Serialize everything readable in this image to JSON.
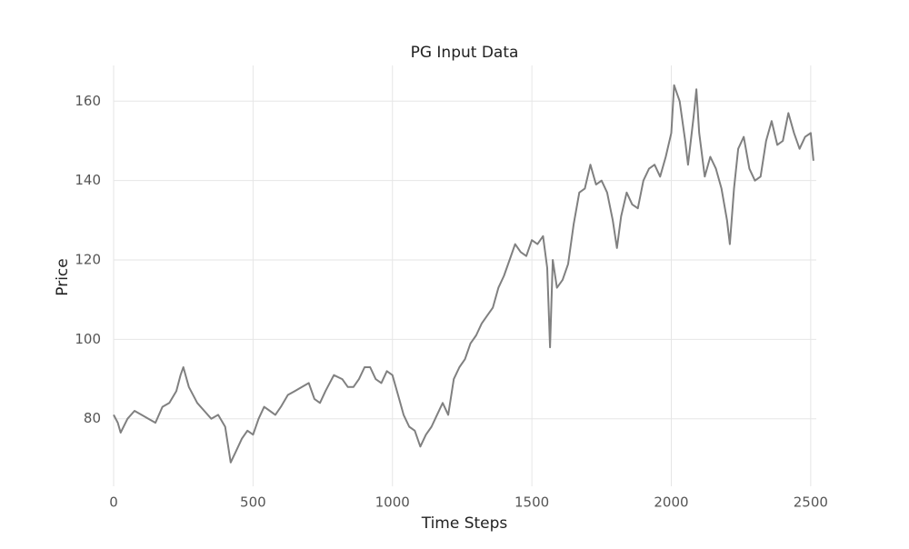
{
  "chart_data": {
    "type": "line",
    "title": "PG Input Data",
    "x_label": "Time Steps",
    "y_label": "Price",
    "x": [
      0,
      15,
      25,
      50,
      75,
      100,
      125,
      150,
      175,
      200,
      225,
      240,
      250,
      270,
      300,
      325,
      350,
      375,
      400,
      420,
      440,
      460,
      480,
      500,
      520,
      540,
      560,
      580,
      600,
      625,
      650,
      675,
      700,
      720,
      740,
      760,
      790,
      820,
      840,
      860,
      880,
      900,
      920,
      940,
      960,
      980,
      1000,
      1020,
      1040,
      1060,
      1080,
      1100,
      1120,
      1140,
      1160,
      1180,
      1200,
      1220,
      1240,
      1260,
      1280,
      1300,
      1320,
      1340,
      1360,
      1380,
      1400,
      1420,
      1440,
      1460,
      1480,
      1500,
      1520,
      1540,
      1555,
      1565,
      1575,
      1590,
      1610,
      1630,
      1650,
      1670,
      1690,
      1710,
      1730,
      1750,
      1770,
      1790,
      1805,
      1820,
      1840,
      1860,
      1880,
      1900,
      1920,
      1940,
      1960,
      1980,
      2000,
      2010,
      2030,
      2050,
      2060,
      2080,
      2090,
      2100,
      2120,
      2140,
      2160,
      2180,
      2200,
      2210,
      2225,
      2240,
      2260,
      2280,
      2300,
      2320,
      2340,
      2360,
      2380,
      2400,
      2420,
      2440,
      2460,
      2480,
      2500,
      2510
    ],
    "series": [
      {
        "name": "Price",
        "color": "#808080",
        "values": [
          81,
          79,
          76.5,
          80,
          82,
          81,
          80,
          79,
          83,
          84,
          87,
          91,
          93,
          88,
          84,
          82,
          80,
          81,
          78,
          69,
          72,
          75,
          77,
          76,
          80,
          83,
          82,
          81,
          83,
          86,
          87,
          88,
          89,
          85,
          84,
          87,
          91,
          90,
          88,
          88,
          90,
          93,
          93,
          90,
          89,
          92,
          91,
          86,
          81,
          78,
          77,
          73,
          76,
          78,
          81,
          84,
          81,
          90,
          93,
          95,
          99,
          101,
          104,
          106,
          108,
          113,
          116,
          120,
          124,
          122,
          121,
          125,
          124,
          126,
          118,
          98,
          120,
          113,
          115,
          119,
          129,
          137,
          138,
          144,
          139,
          140,
          137,
          130,
          123,
          131,
          137,
          134,
          133,
          140,
          143,
          144,
          141,
          146,
          152,
          164,
          160,
          150,
          144,
          156,
          163,
          152,
          141,
          146,
          143,
          138,
          130,
          124,
          138,
          148,
          151,
          143,
          140,
          141,
          150,
          155,
          149,
          150,
          157,
          152,
          148,
          151,
          152,
          145
        ]
      }
    ],
    "xlim": [
      0,
      2520
    ],
    "ylim": [
      63,
      169
    ],
    "xticks": [
      0,
      500,
      1000,
      1500,
      2000,
      2500
    ],
    "yticks": [
      80,
      100,
      120,
      140,
      160
    ],
    "grid": true
  }
}
